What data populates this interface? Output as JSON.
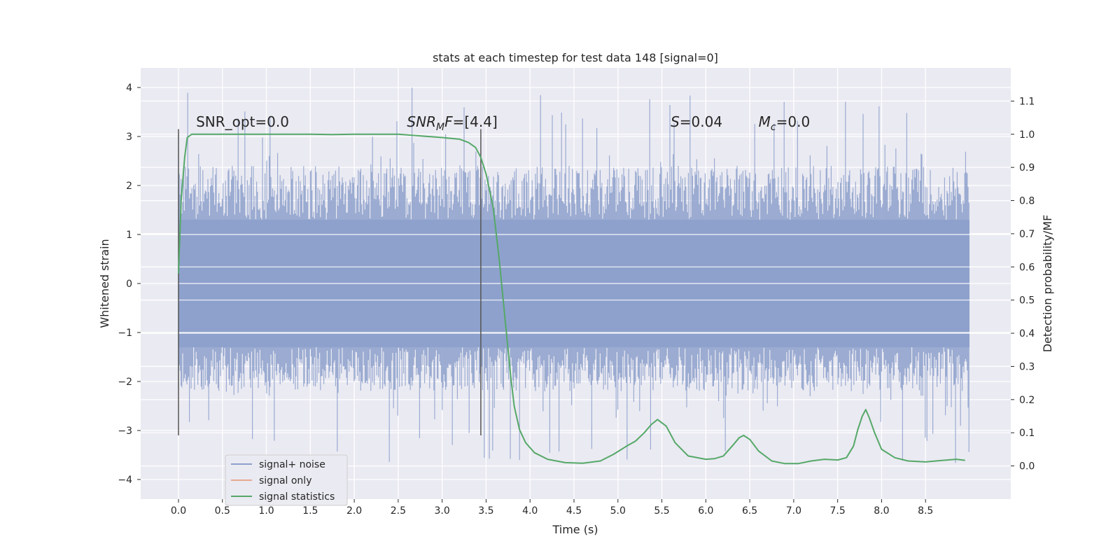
{
  "chart_data": {
    "type": "line",
    "title": "stats at each timestep for test data 148 [signal=0]",
    "xlabel": "Time (s)",
    "ylabel": "Whitened strain",
    "y2label": "Detection probability/MF",
    "xlim": [
      -0.43,
      9.47
    ],
    "ylim": [
      -4.4,
      4.4
    ],
    "y2lim": [
      -0.1,
      1.2
    ],
    "xticks": [
      "0.0",
      "0.5",
      "1.0",
      "1.5",
      "2.0",
      "2.5",
      "3.0",
      "3.5",
      "4.0",
      "4.5",
      "5.0",
      "5.5",
      "6.0",
      "6.5",
      "7.0",
      "7.5",
      "8.0",
      "8.5"
    ],
    "yticks": [
      "4",
      "3",
      "2",
      "1",
      "0",
      "−1",
      "−2",
      "−3",
      "−4"
    ],
    "y2ticks": [
      "1.1",
      "1.0",
      "0.9",
      "0.8",
      "0.7",
      "0.6",
      "0.5",
      "0.4",
      "0.3",
      "0.2",
      "0.1",
      "0.0"
    ],
    "grid": true,
    "legend_position": "lower-left",
    "annotations": [
      {
        "id": "snr-opt",
        "x": 0.2,
        "y": 3.2,
        "prefix": "SNR_opt=0.0",
        "sub": "",
        "suffix": "",
        "italic": false
      },
      {
        "id": "snr-mf",
        "x": 2.6,
        "y": 3.2,
        "prefix": "SNR",
        "sub": "M",
        "suffix": "F=[4.4]",
        "italic": true
      },
      {
        "id": "s-value",
        "x": 5.6,
        "y": 3.2,
        "prefix": "S",
        "sub": "",
        "suffix": "=0.04",
        "italic": true
      },
      {
        "id": "mc-value",
        "x": 6.6,
        "y": 3.2,
        "prefix": "M",
        "sub": "c",
        "suffix": "=0.0",
        "italic": true
      }
    ],
    "vlines": [
      {
        "x": 0.0,
        "ymin": -3.1,
        "ymax": 3.15
      },
      {
        "x": 3.44,
        "ymin": -3.1,
        "ymax": 3.15
      }
    ],
    "series": [
      {
        "name": "signal+ noise",
        "color": "#8da0cb",
        "kind": "noise",
        "x_range": [
          0.0,
          9.0
        ],
        "core_amplitude": 1.3,
        "peak_range": [
          -3.7,
          4.0
        ]
      },
      {
        "name": "signal only",
        "color": "#e8a990",
        "kind": "line",
        "x": [],
        "y": []
      },
      {
        "name": "signal statistics",
        "color": "#55a868",
        "kind": "line",
        "axis": "right",
        "x": [
          0.0,
          0.03,
          0.07,
          0.1,
          0.15,
          0.25,
          0.5,
          1.0,
          1.5,
          1.75,
          2.0,
          2.5,
          3.0,
          3.2,
          3.3,
          3.38,
          3.44,
          3.5,
          3.58,
          3.65,
          3.72,
          3.78,
          3.82,
          3.88,
          3.95,
          4.05,
          4.2,
          4.4,
          4.6,
          4.8,
          4.95,
          5.1,
          5.2,
          5.3,
          5.38,
          5.45,
          5.55,
          5.65,
          5.8,
          6.0,
          6.1,
          6.2,
          6.3,
          6.38,
          6.43,
          6.5,
          6.6,
          6.75,
          6.9,
          7.05,
          7.2,
          7.35,
          7.5,
          7.6,
          7.68,
          7.73,
          7.78,
          7.82,
          7.86,
          7.92,
          8.0,
          8.15,
          8.3,
          8.5,
          8.7,
          8.85,
          8.95
        ],
        "y": [
          0.58,
          0.8,
          0.93,
          0.99,
          1.0,
          1.0,
          1.0,
          1.0,
          1.0,
          0.999,
          1.0,
          1.0,
          0.99,
          0.985,
          0.975,
          0.96,
          0.93,
          0.88,
          0.78,
          0.62,
          0.43,
          0.27,
          0.18,
          0.11,
          0.07,
          0.04,
          0.02,
          0.01,
          0.008,
          0.015,
          0.035,
          0.06,
          0.075,
          0.1,
          0.125,
          0.14,
          0.12,
          0.07,
          0.03,
          0.02,
          0.022,
          0.03,
          0.06,
          0.085,
          0.092,
          0.08,
          0.045,
          0.015,
          0.007,
          0.007,
          0.015,
          0.02,
          0.018,
          0.025,
          0.06,
          0.11,
          0.15,
          0.17,
          0.145,
          0.1,
          0.05,
          0.025,
          0.015,
          0.012,
          0.017,
          0.02,
          0.017
        ]
      }
    ]
  }
}
